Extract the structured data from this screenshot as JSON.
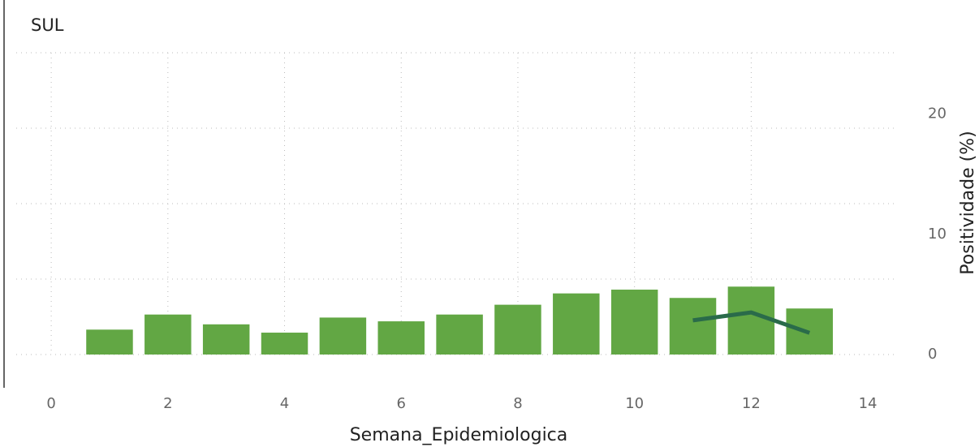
{
  "chart_data": {
    "type": "bar",
    "title": "SUL",
    "x_label": "Semana_Epidemiologica",
    "y2_label": "Positividade (%)",
    "x": [
      1,
      2,
      3,
      4,
      5,
      6,
      7,
      8,
      9,
      10,
      11,
      12,
      13
    ],
    "series": [
      {
        "type": "bar",
        "color": "#62a744",
        "values": [
          0.33,
          0.53,
          0.4,
          0.29,
          0.49,
          0.44,
          0.53,
          0.66,
          0.81,
          0.86,
          0.75,
          0.9,
          0.61
        ]
      },
      {
        "type": "line",
        "axis": "y2",
        "color": "#2a6b4a",
        "values": [
          null,
          null,
          null,
          null,
          null,
          null,
          null,
          null,
          null,
          null,
          2.84,
          3.5,
          1.8
        ]
      }
    ],
    "xlim": [
      -0.6,
      14.5
    ],
    "xticks": [
      0,
      2,
      4,
      6,
      8,
      10,
      12,
      14
    ],
    "ylim": [
      0,
      4
    ],
    "yticks": [
      0,
      1,
      2,
      3,
      4
    ],
    "y2lim": [
      0,
      25.1
    ],
    "y2ticks": [
      0,
      10,
      20
    ],
    "grid": true
  }
}
